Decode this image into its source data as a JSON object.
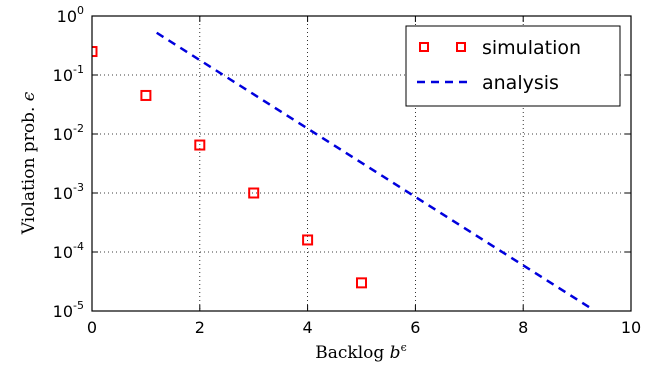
{
  "chart_data": {
    "type": "scatter",
    "xlabel": "Backlog",
    "xlabel_symbol": "b",
    "xlabel_superscript": "ϵ",
    "ylabel": "Violation prob.",
    "ylabel_symbol": "ϵ",
    "xlim": [
      0,
      10
    ],
    "ylim_log10": [
      -5,
      0
    ],
    "yscale": "log",
    "grid": true,
    "legend_position": "top-right",
    "x_ticks": [
      "0",
      "2",
      "4",
      "6",
      "8",
      "10"
    ],
    "y_ticks": [
      {
        "base": "10",
        "exp": "0"
      },
      {
        "base": "10",
        "exp": "-1"
      },
      {
        "base": "10",
        "exp": "-2"
      },
      {
        "base": "10",
        "exp": "-3"
      },
      {
        "base": "10",
        "exp": "-4"
      },
      {
        "base": "10",
        "exp": "-5"
      }
    ],
    "series": [
      {
        "name": "simulation",
        "style": "markers",
        "marker": "square",
        "color": "#ff0000",
        "x": [
          0,
          1,
          2,
          3,
          4,
          5
        ],
        "y": [
          0.25,
          0.045,
          0.0065,
          0.001,
          0.00016,
          3e-05
        ]
      },
      {
        "name": "analysis",
        "style": "dashed-line",
        "color": "#0000dd",
        "x": [
          1.2,
          9.3
        ],
        "y": [
          0.52,
          1.05e-05
        ]
      }
    ]
  }
}
